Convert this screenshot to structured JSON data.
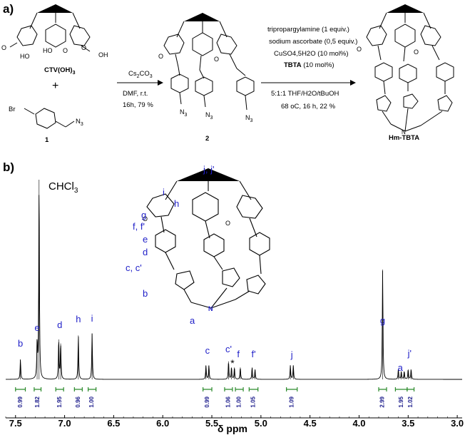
{
  "panel_a": {
    "label": "a)",
    "compound_ctv": "CTV(OH)",
    "compound_ctv_sub": "3",
    "plus": "+",
    "reagent_1_br": "Br",
    "reagent_1_n3": "N",
    "reagent_1_n3_sub": "3",
    "reagent_1_num": "1",
    "step1": {
      "reagent": "Cs",
      "reagent_sub": "2",
      "reagent_tail": "CO",
      "reagent_tail_sub": "3",
      "line2": "DMF, r.t.",
      "line3": "16h, 79 %"
    },
    "compound_2": "2",
    "step2": {
      "line1": "tripropargylamine (1 equiv.)",
      "line2": "sodium ascorbate (0,5 equiv.)",
      "line3": "CuSO4,5H2O (10 mol%)",
      "line4_bold": "TBTA",
      "line4_rest": " (10 mol%)",
      "line5": "5:1:1 THF/H2O/tBuOH",
      "line6": "68 oC, 16 h, 22 %"
    },
    "product": "Hm-TBTA",
    "azide_label": "N",
    "azide_sub": "3",
    "ome": "O",
    "oh": "OH",
    "ho": "HO"
  },
  "panel_b": {
    "label": "b)",
    "solvent": "CHCl",
    "solvent_sub": "3",
    "structure_labels": [
      "j, j'",
      "i",
      "h",
      "g",
      "f, f'",
      "e",
      "d",
      "c, c'",
      "b",
      "a"
    ],
    "peak_labels": [
      "b",
      "e",
      "d",
      "h",
      "i",
      "c",
      "c'",
      "*",
      "f",
      "f'",
      "j",
      "g",
      "a",
      "j'"
    ],
    "integrals": [
      "0.99",
      "1.82",
      "1.95",
      "0.96",
      "1.00",
      "0.99",
      "1.06",
      "1.00",
      "1.05",
      "1.09",
      "2.99",
      "1.95",
      "1.02"
    ],
    "xlabel": "δ ppm",
    "xticks": [
      "7.5",
      "7.0",
      "6.5",
      "6.0",
      "5.5",
      "5.0",
      "4.5",
      "4.0",
      "3.5",
      "3.0"
    ]
  },
  "chart_data": {
    "type": "line",
    "title": "",
    "xlabel": "δ ppm",
    "ylabel": "",
    "xlim": [
      7.6,
      2.95
    ],
    "x_reversed": true,
    "peaks_ppm": [
      {
        "label": "b",
        "ppm": 7.45,
        "height": 0.1
      },
      {
        "label": "CHCl3",
        "ppm": 7.26,
        "height": 1.0
      },
      {
        "label": "e",
        "ppm": 7.28,
        "height": 0.18
      },
      {
        "label": "d",
        "ppm": 7.06,
        "height": 0.2
      },
      {
        "label": "d",
        "ppm": 7.04,
        "height": 0.18
      },
      {
        "label": "h",
        "ppm": 6.86,
        "height": 0.22
      },
      {
        "label": "i",
        "ppm": 6.72,
        "height": 0.23
      },
      {
        "label": "c",
        "ppm": 5.56,
        "height": 0.07
      },
      {
        "label": "c",
        "ppm": 5.53,
        "height": 0.07
      },
      {
        "label": "c'",
        "ppm": 5.33,
        "height": 0.09
      },
      {
        "label": "*",
        "ppm": 5.3,
        "height": 0.06
      },
      {
        "label": "f",
        "ppm": 5.27,
        "height": 0.06
      },
      {
        "label": "f",
        "ppm": 5.21,
        "height": 0.06
      },
      {
        "label": "f'",
        "ppm": 5.09,
        "height": 0.06
      },
      {
        "label": "f'",
        "ppm": 5.06,
        "height": 0.05
      },
      {
        "label": "j",
        "ppm": 4.7,
        "height": 0.07
      },
      {
        "label": "j",
        "ppm": 4.67,
        "height": 0.07
      },
      {
        "label": "g",
        "ppm": 3.76,
        "height": 0.55
      },
      {
        "label": "a",
        "ppm": 3.6,
        "height": 0.05
      },
      {
        "label": "a",
        "ppm": 3.57,
        "height": 0.04
      },
      {
        "label": "a",
        "ppm": 3.54,
        "height": 0.04
      },
      {
        "label": "j'",
        "ppm": 3.5,
        "height": 0.05
      },
      {
        "label": "j'",
        "ppm": 3.47,
        "height": 0.05
      }
    ],
    "integrals": [
      {
        "from": 7.5,
        "to": 7.4,
        "value": "0.99"
      },
      {
        "from": 7.31,
        "to": 7.24,
        "value": "1.82"
      },
      {
        "from": 7.09,
        "to": 7.01,
        "value": "1.95"
      },
      {
        "from": 6.9,
        "to": 6.82,
        "value": "0.96"
      },
      {
        "from": 6.76,
        "to": 6.68,
        "value": "1.00"
      },
      {
        "from": 5.59,
        "to": 5.5,
        "value": "0.99"
      },
      {
        "from": 5.37,
        "to": 5.29,
        "value": "1.06"
      },
      {
        "from": 5.26,
        "to": 5.18,
        "value": "1.00"
      },
      {
        "from": 5.12,
        "to": 5.03,
        "value": "1.05"
      },
      {
        "from": 4.74,
        "to": 4.63,
        "value": "1.09"
      },
      {
        "from": 3.8,
        "to": 3.72,
        "value": "2.99"
      },
      {
        "from": 3.63,
        "to": 3.51,
        "value": "1.95"
      },
      {
        "from": 3.51,
        "to": 3.44,
        "value": "1.02"
      }
    ]
  }
}
